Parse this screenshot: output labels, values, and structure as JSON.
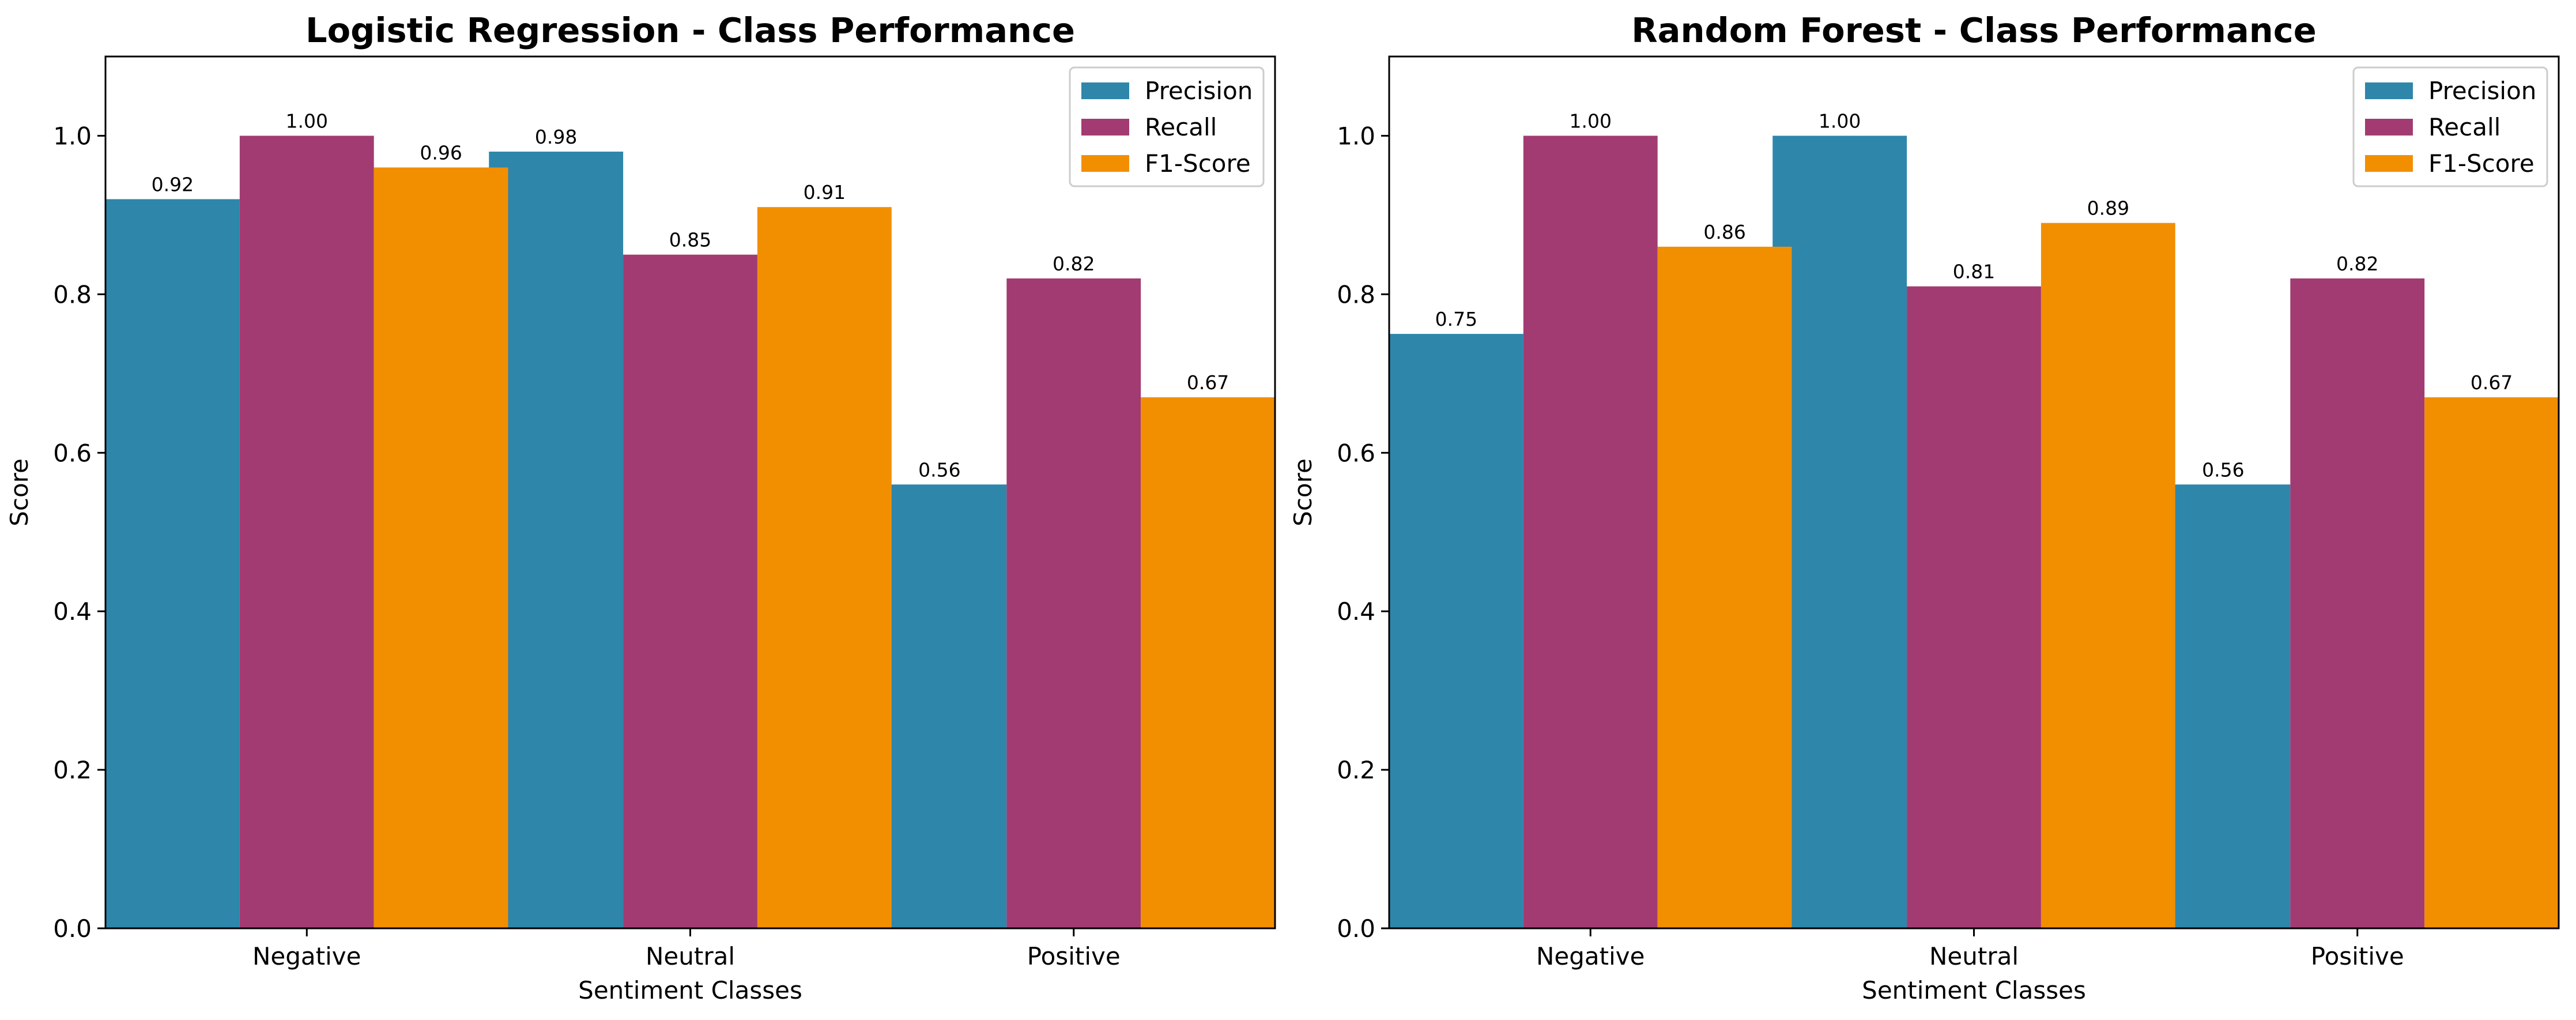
{
  "colors": {
    "precision": "#2E86AB",
    "recall": "#A23B72",
    "f1": "#F18F01"
  },
  "chart_data": [
    {
      "type": "bar",
      "title": "Logistic Regression - Class Performance",
      "xlabel": "Sentiment Classes",
      "ylabel": "Score",
      "ylim": [
        0,
        1.1
      ],
      "yticks": [
        "0.0",
        "0.2",
        "0.4",
        "0.6",
        "0.8",
        "1.0"
      ],
      "legend_placement": "top-right",
      "grid": false,
      "categories": [
        "Negative",
        "Neutral",
        "Positive"
      ],
      "series": [
        {
          "name": "Precision",
          "values": [
            0.92,
            0.98,
            0.56
          ],
          "labels": [
            "0.92",
            "0.98",
            "0.56"
          ]
        },
        {
          "name": "Recall",
          "values": [
            1.0,
            0.85,
            0.82
          ],
          "labels": [
            "1.00",
            "0.85",
            "0.82"
          ]
        },
        {
          "name": "F1-Score",
          "values": [
            0.96,
            0.91,
            0.67
          ],
          "labels": [
            "0.96",
            "0.91",
            "0.67"
          ]
        }
      ]
    },
    {
      "type": "bar",
      "title": "Random Forest - Class Performance",
      "xlabel": "Sentiment Classes",
      "ylabel": "Score",
      "ylim": [
        0,
        1.1
      ],
      "yticks": [
        "0.0",
        "0.2",
        "0.4",
        "0.6",
        "0.8",
        "1.0"
      ],
      "legend_placement": "top-right",
      "grid": false,
      "categories": [
        "Negative",
        "Neutral",
        "Positive"
      ],
      "series": [
        {
          "name": "Precision",
          "values": [
            0.75,
            1.0,
            0.56
          ],
          "labels": [
            "0.75",
            "1.00",
            "0.56"
          ]
        },
        {
          "name": "Recall",
          "values": [
            1.0,
            0.81,
            0.82
          ],
          "labels": [
            "1.00",
            "0.81",
            "0.82"
          ]
        },
        {
          "name": "F1-Score",
          "values": [
            0.86,
            0.89,
            0.67
          ],
          "labels": [
            "0.86",
            "0.89",
            "0.67"
          ]
        }
      ]
    }
  ]
}
